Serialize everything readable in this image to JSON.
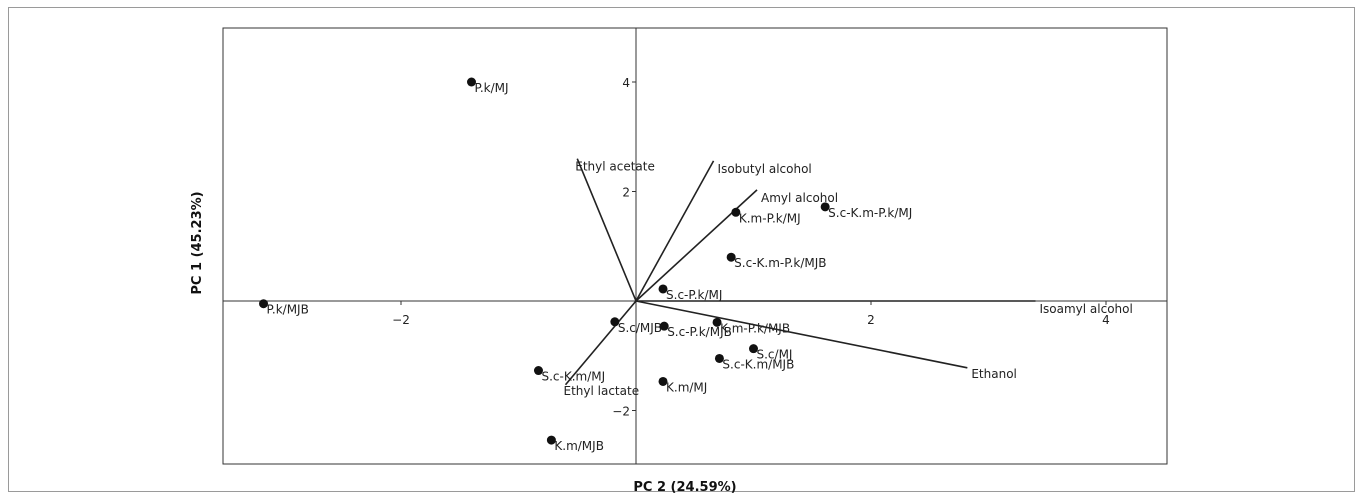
{
  "chart_data": {
    "type": "scatter",
    "subtype": "biplot",
    "xlabel": "PC 2 (24.59%)",
    "ylabel": "PC 1 (45.23%)",
    "xlim": [
      -3.5,
      4.5
    ],
    "ylim": [
      -3.0,
      5.0
    ],
    "x_ticks": [
      -2,
      2,
      4
    ],
    "y_ticks": [
      4,
      2,
      -2
    ],
    "grid": false,
    "points": [
      {
        "label": "P.k/MJ",
        "x": -1.4,
        "y": 4.0
      },
      {
        "label": "P.k/MJB",
        "x": -3.17,
        "y": -0.05
      },
      {
        "label": "K.m-P.k/MJ",
        "x": 0.85,
        "y": 1.62
      },
      {
        "label": "S.c-K.m-P.k/MJ",
        "x": 1.61,
        "y": 1.72
      },
      {
        "label": "S.c-K.m-P.k/MJB",
        "x": 0.81,
        "y": 0.8
      },
      {
        "label": "S.c-P.k/MJ",
        "x": 0.23,
        "y": 0.22
      },
      {
        "label": "S.c/MJB",
        "x": -0.18,
        "y": -0.38
      },
      {
        "label": "S.c-P.k/MJB",
        "x": 0.24,
        "y": -0.46
      },
      {
        "label": "K.m-P.k/MJB",
        "x": 0.69,
        "y": -0.39
      },
      {
        "label": "S.c/MJ",
        "x": 1.0,
        "y": -0.87
      },
      {
        "label": "S.c-K.m/MJB",
        "x": 0.71,
        "y": -1.05
      },
      {
        "label": "S.c-K.m/MJ",
        "x": -0.83,
        "y": -1.27
      },
      {
        "label": "K.m/MJ",
        "x": 0.23,
        "y": -1.47
      },
      {
        "label": "K.m/MJB",
        "x": -0.72,
        "y": -2.54
      }
    ],
    "loadings": [
      {
        "label": "Ethyl acetate",
        "x": -0.5,
        "y": 2.6
      },
      {
        "label": "Isobutyl alcohol",
        "x": 0.66,
        "y": 2.56
      },
      {
        "label": "Amyl alcohol",
        "x": 1.03,
        "y": 2.03
      },
      {
        "label": "Isoamyl alcohol",
        "x": 3.4,
        "y": 0.0
      },
      {
        "label": "Ethanol",
        "x": 2.82,
        "y": -1.22
      },
      {
        "label": "Ethyl lactate",
        "x": -0.6,
        "y": -1.53
      }
    ]
  }
}
